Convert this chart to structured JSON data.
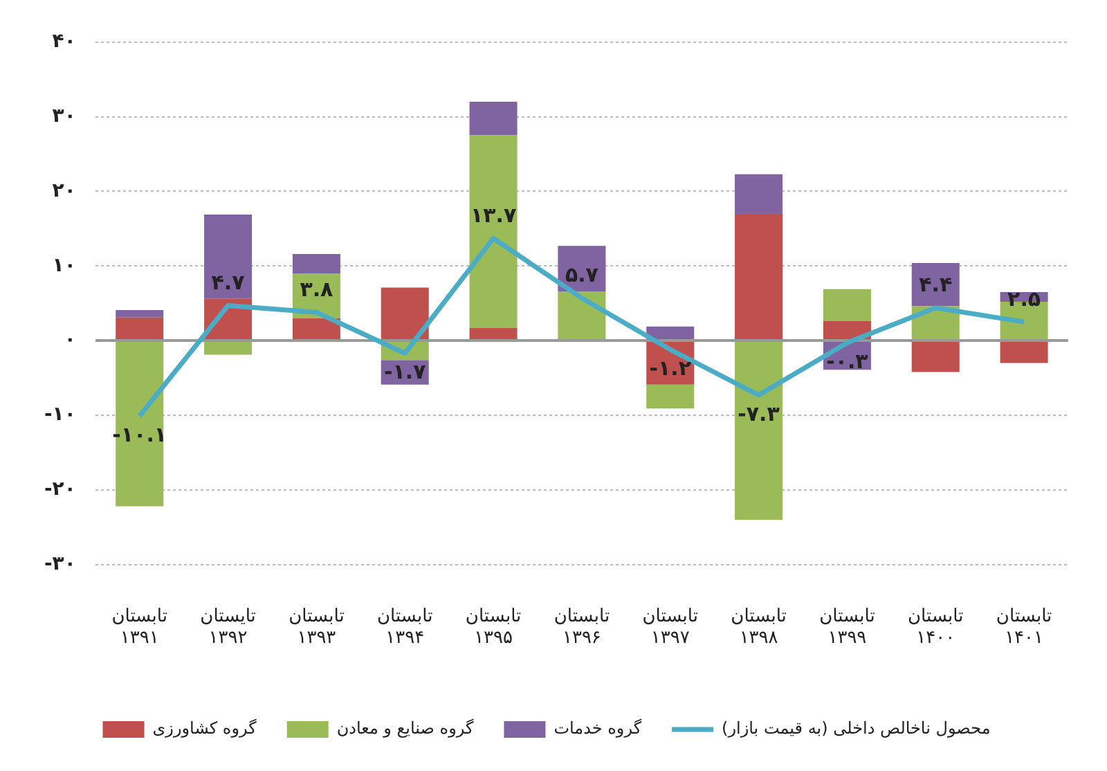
{
  "chart_data": {
    "type": "bar",
    "stacked": true,
    "categories": [
      "تابستان\n۱۳۹۱",
      "تایستان\n۱۳۹۲",
      "تابستان\n۱۳۹۳",
      "تابستان\n۱۳۹۴",
      "تابستان\n۱۳۹۵",
      "تابستان\n۱۳۹۶",
      "تابستان\n۱۳۹۷",
      "تابستان\n۱۳۹۸",
      "تابستان\n۱۳۹۹",
      "تابستان\n۱۴۰۰",
      "تابستان\n۱۴۰۱"
    ],
    "series": [
      {
        "name": "گروه کشاورزی",
        "color": "#c0504d",
        "values": [
          3.1,
          5.6,
          3.0,
          7.1,
          1.7,
          null,
          -5.9,
          16.9,
          2.6,
          -4.2,
          -3.0
        ]
      },
      {
        "name": "گروه صنایع و معادن",
        "color": "#9bbb59",
        "values": [
          -22.2,
          -1.9,
          6.0,
          -2.6,
          25.8,
          6.6,
          -3.2,
          -24.0,
          4.3,
          4.6,
          5.2
        ]
      },
      {
        "name": "گروه خدمات",
        "color": "#8064a2",
        "values": [
          1.0,
          11.3,
          2.6,
          -3.3,
          4.5,
          6.1,
          1.9,
          5.4,
          -3.9,
          5.8,
          1.3
        ]
      },
      {
        "name": "محصول ناخالص داخلی (به قیمت بازار)",
        "type": "line",
        "color": "#4bacc6",
        "values": [
          -10.1,
          4.7,
          3.8,
          -1.7,
          13.7,
          5.7,
          -1.2,
          -7.3,
          -0.3,
          4.4,
          2.5
        ],
        "value_labels": [
          "-۱۰.۱",
          "۴.۷",
          "۳.۸",
          "-۱.۷",
          "۱۳.۷",
          "۵.۷",
          "-۱.۲",
          "-۷.۳",
          "-۰.۳",
          "۴.۴",
          "۲.۵"
        ]
      }
    ],
    "ylim": [
      -30,
      40
    ],
    "yticks": [
      {
        "value": -30,
        "label": "-۳۰"
      },
      {
        "value": -20,
        "label": "-۲۰"
      },
      {
        "value": -10,
        "label": "-۱۰"
      },
      {
        "value": 0,
        "label": "۰"
      },
      {
        "value": 10,
        "label": "۱۰"
      },
      {
        "value": 20,
        "label": "۲۰"
      },
      {
        "value": 30,
        "label": "۳۰"
      },
      {
        "value": 40,
        "label": "۴۰"
      }
    ],
    "grid": "y",
    "legend": "bottom",
    "marker": "none"
  }
}
